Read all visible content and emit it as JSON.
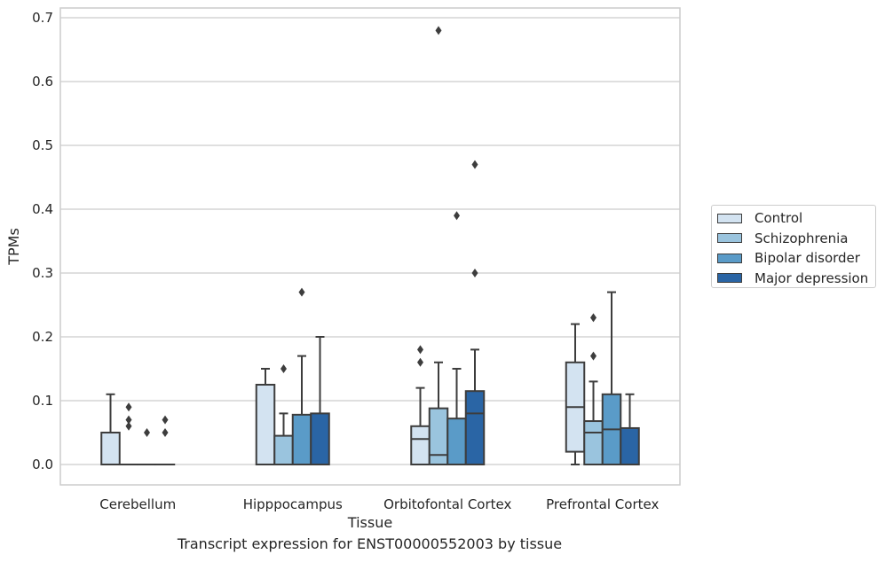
{
  "chart_data": {
    "type": "boxplot",
    "xlabel": "Tissue",
    "ylabel": "TPMs",
    "caption": "Transcript expression for ENST00000552003 by tissue",
    "ylim": [
      -0.033,
      0.715
    ],
    "yticks": [
      0.0,
      0.1,
      0.2,
      0.3,
      0.4,
      0.5,
      0.6,
      0.7
    ],
    "ytick_labels": [
      "0.0",
      "0.1",
      "0.2",
      "0.3",
      "0.4",
      "0.5",
      "0.6",
      "0.7"
    ],
    "grid": true,
    "legend_position": "right",
    "categories": [
      "Cerebellum",
      "Hipppocampus",
      "Orbitofontal Cortex",
      "Prefrontal Cortex"
    ],
    "series": [
      {
        "name": "Control",
        "color": "#d3e3f1",
        "boxes": [
          {
            "q1": 0.0,
            "median": 0.0,
            "q3": 0.05,
            "whisker_low": 0.0,
            "whisker_high": 0.11,
            "outliers": []
          },
          {
            "q1": 0.0,
            "median": 0.0,
            "q3": 0.125,
            "whisker_low": 0.0,
            "whisker_high": 0.15,
            "outliers": []
          },
          {
            "q1": 0.0,
            "median": 0.04,
            "q3": 0.06,
            "whisker_low": 0.0,
            "whisker_high": 0.12,
            "outliers": [
              0.16,
              0.18
            ]
          },
          {
            "q1": 0.02,
            "median": 0.09,
            "q3": 0.16,
            "whisker_low": 0.0,
            "whisker_high": 0.22,
            "outliers": []
          }
        ]
      },
      {
        "name": "Schizophrenia",
        "color": "#9ac4de",
        "boxes": [
          {
            "q1": 0.0,
            "median": 0.0,
            "q3": 0.0,
            "whisker_low": 0.0,
            "whisker_high": 0.0,
            "outliers": [
              0.06,
              0.07,
              0.09
            ]
          },
          {
            "q1": 0.0,
            "median": 0.0,
            "q3": 0.045,
            "whisker_low": 0.0,
            "whisker_high": 0.08,
            "outliers": [
              0.15
            ]
          },
          {
            "q1": 0.0,
            "median": 0.015,
            "q3": 0.088,
            "whisker_low": 0.0,
            "whisker_high": 0.16,
            "outliers": [
              0.68
            ]
          },
          {
            "q1": 0.0,
            "median": 0.05,
            "q3": 0.068,
            "whisker_low": 0.0,
            "whisker_high": 0.13,
            "outliers": [
              0.17,
              0.23
            ]
          }
        ]
      },
      {
        "name": "Bipolar disorder",
        "color": "#5a9bc8",
        "boxes": [
          {
            "q1": 0.0,
            "median": 0.0,
            "q3": 0.0,
            "whisker_low": 0.0,
            "whisker_high": 0.0,
            "outliers": [
              0.05
            ]
          },
          {
            "q1": 0.0,
            "median": 0.0,
            "q3": 0.078,
            "whisker_low": 0.0,
            "whisker_high": 0.17,
            "outliers": [
              0.27
            ]
          },
          {
            "q1": 0.0,
            "median": 0.0,
            "q3": 0.072,
            "whisker_low": 0.0,
            "whisker_high": 0.15,
            "outliers": [
              0.39
            ]
          },
          {
            "q1": 0.0,
            "median": 0.055,
            "q3": 0.11,
            "whisker_low": 0.0,
            "whisker_high": 0.27,
            "outliers": []
          }
        ]
      },
      {
        "name": "Major depression",
        "color": "#2a65a5",
        "boxes": [
          {
            "q1": 0.0,
            "median": 0.0,
            "q3": 0.0,
            "whisker_low": 0.0,
            "whisker_high": 0.0,
            "outliers": [
              0.05,
              0.07
            ]
          },
          {
            "q1": 0.0,
            "median": 0.0,
            "q3": 0.08,
            "whisker_low": 0.0,
            "whisker_high": 0.2,
            "outliers": []
          },
          {
            "q1": 0.0,
            "median": 0.08,
            "q3": 0.115,
            "whisker_low": 0.0,
            "whisker_high": 0.18,
            "outliers": [
              0.3,
              0.47
            ]
          },
          {
            "q1": 0.0,
            "median": 0.0,
            "q3": 0.057,
            "whisker_low": 0.0,
            "whisker_high": 0.11,
            "outliers": []
          }
        ]
      }
    ]
  }
}
